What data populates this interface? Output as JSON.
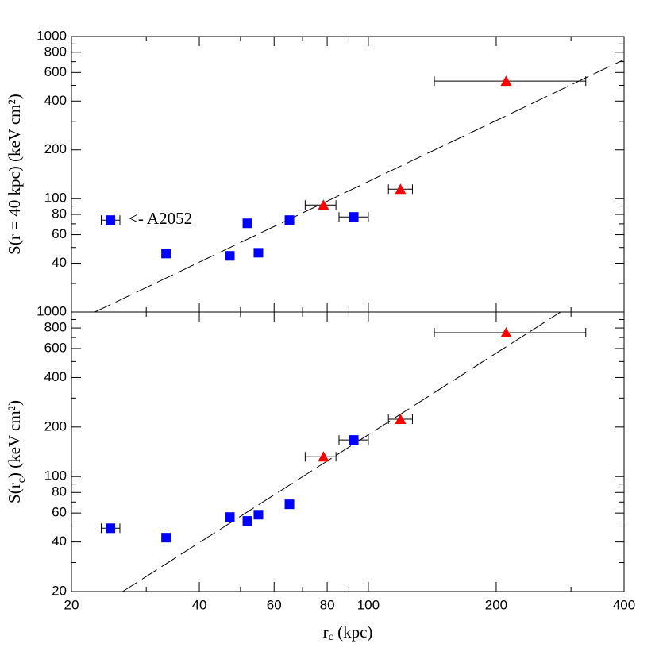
{
  "chart_data": [
    {
      "type": "scatter",
      "ylabel": {
        "text": "S(r = 40 kpc)  (keV cm²)"
      },
      "xlim": [
        20,
        400
      ],
      "ylim": [
        20,
        1000
      ],
      "log": true,
      "yticks": [
        40,
        60,
        80,
        100,
        200,
        400,
        600,
        800,
        1000
      ],
      "yticks_minor": [
        30,
        50,
        70,
        90,
        300,
        500,
        700,
        900
      ],
      "annotation": {
        "text": "<- A2052",
        "x": 24.7,
        "y": 73.8
      },
      "fit": {
        "x": [
          22.7,
          400
        ],
        "y": [
          20,
          721
        ]
      },
      "series": [
        {
          "marker": "square",
          "color": "#0000ff",
          "x": [
            24.7,
            33.4,
            47.2,
            51.9,
            55.1,
            65.2,
            92.4
          ],
          "y": [
            73.8,
            45.9,
            44.4,
            70.5,
            46.4,
            73.8,
            77.2
          ],
          "xerr": [
            [
              1.2,
              1.3
            ],
            null,
            [
              0.6,
              0.6
            ],
            null,
            null,
            null,
            [
              7.1,
              7.6
            ]
          ]
        },
        {
          "marker": "triangle",
          "color": "#ff0000",
          "x": [
            78.4,
            119,
            211
          ],
          "y": [
            91.4,
            114.5,
            531
          ],
          "xerr": [
            [
              7.4,
              5.5
            ],
            [
              7.5,
              8
            ],
            [
              68,
              114
            ]
          ]
        }
      ]
    },
    {
      "type": "scatter",
      "ylabel": {
        "text": "S(r",
        "sub": "c",
        "rest": ")  (keV cm²)"
      },
      "xlabel": {
        "text": "r",
        "sub": "c",
        "rest": " (kpc)"
      },
      "xlim": [
        20,
        400
      ],
      "ylim": [
        20,
        1000
      ],
      "log": true,
      "xticks": [
        20,
        40,
        60,
        80,
        100,
        200,
        400
      ],
      "xticks_minor": [
        30,
        50,
        70,
        90,
        300
      ],
      "yticks": [
        20,
        40,
        60,
        80,
        100,
        200,
        400,
        600,
        800,
        1000
      ],
      "yticks_minor": [
        30,
        50,
        70,
        90,
        300,
        500,
        700,
        900
      ],
      "fit": {
        "x": [
          26.4,
          283.6
        ],
        "y": [
          20,
          1000
        ]
      },
      "series": [
        {
          "marker": "square",
          "color": "#0000ff",
          "x": [
            24.7,
            33.4,
            47.2,
            51.9,
            55.1,
            65.2,
            92.4
          ],
          "y": [
            48.5,
            42.5,
            56.7,
            53.7,
            58.6,
            67.8,
            166.8
          ],
          "xerr": [
            [
              1.2,
              1.3
            ],
            null,
            [
              0.6,
              0.6
            ],
            null,
            null,
            null,
            [
              7.1,
              7.6
            ]
          ]
        },
        {
          "marker": "triangle",
          "color": "#ff0000",
          "x": [
            78.4,
            119,
            211
          ],
          "y": [
            132,
            223,
            749
          ],
          "xerr": [
            [
              7.4,
              5.5
            ],
            [
              7.5,
              8
            ],
            [
              68,
              114
            ]
          ]
        }
      ]
    }
  ]
}
